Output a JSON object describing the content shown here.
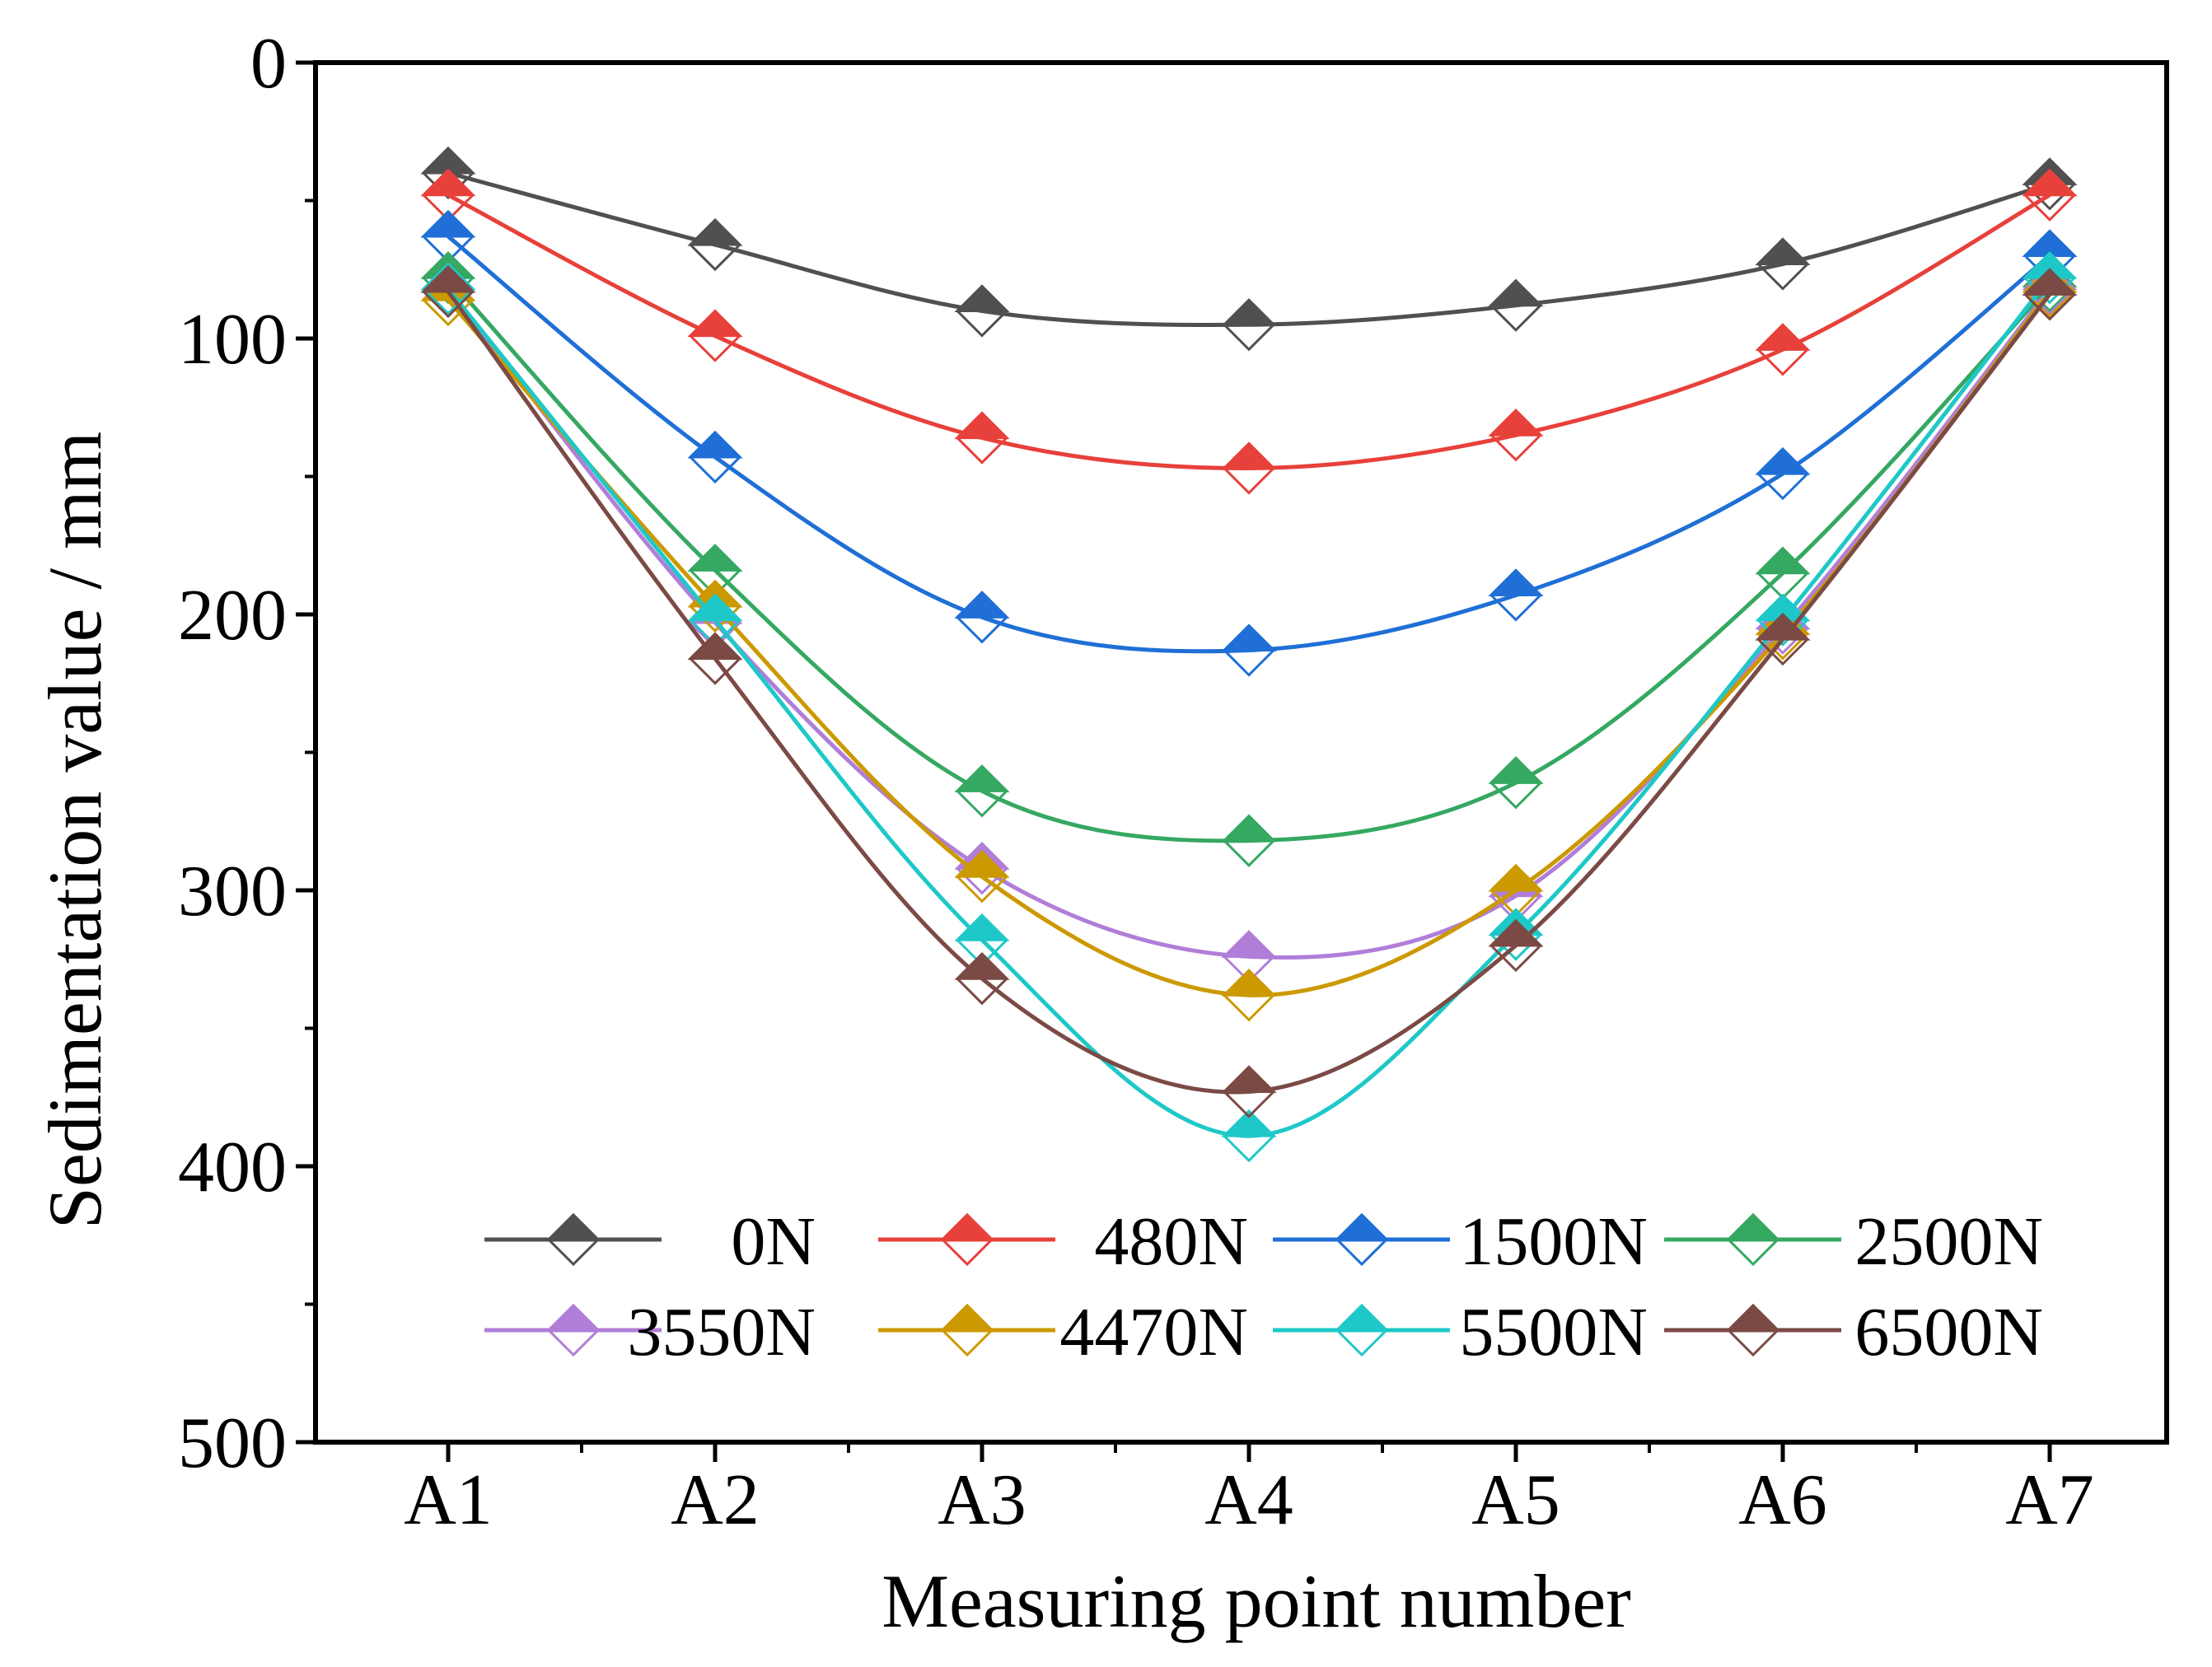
{
  "chart_data": {
    "type": "line",
    "xlabel": "Measuring point number",
    "ylabel": "Sedimentation value / mm",
    "categories": [
      "A1",
      "A2",
      "A3",
      "A4",
      "A5",
      "A6",
      "A7"
    ],
    "ylim": [
      0,
      500
    ],
    "y_inverted": true,
    "yticks": [
      0,
      100,
      200,
      300,
      400,
      500
    ],
    "yticks_labels": [
      "0",
      "100",
      "200",
      "300",
      "400",
      "500"
    ],
    "grid": false,
    "legend_position": "bottom-center",
    "series": [
      {
        "name": "0N",
        "color": "#505050",
        "values": [
          40,
          66,
          90,
          95,
          88,
          73,
          44
        ]
      },
      {
        "name": "480N",
        "color": "#e8403a",
        "values": [
          48,
          99,
          136,
          147,
          135,
          104,
          48
        ]
      },
      {
        "name": "1500N",
        "color": "#1f6fd6",
        "values": [
          63,
          143,
          201,
          213,
          193,
          149,
          70
        ]
      },
      {
        "name": "2500N",
        "color": "#35a862",
        "values": [
          78,
          184,
          264,
          282,
          261,
          185,
          81
        ]
      },
      {
        "name": "3550N",
        "color": "#b07ed8",
        "values": [
          82,
          203,
          292,
          324,
          302,
          205,
          82
        ]
      },
      {
        "name": "4470N",
        "color": "#cc9900",
        "values": [
          86,
          197,
          295,
          338,
          300,
          207,
          83
        ]
      },
      {
        "name": "5500N",
        "color": "#1ec8c8",
        "values": [
          82,
          202,
          318,
          389,
          316,
          202,
          78
        ]
      },
      {
        "name": "6500N",
        "color": "#7b4a45",
        "values": [
          83,
          216,
          332,
          373,
          320,
          209,
          84
        ]
      }
    ]
  }
}
